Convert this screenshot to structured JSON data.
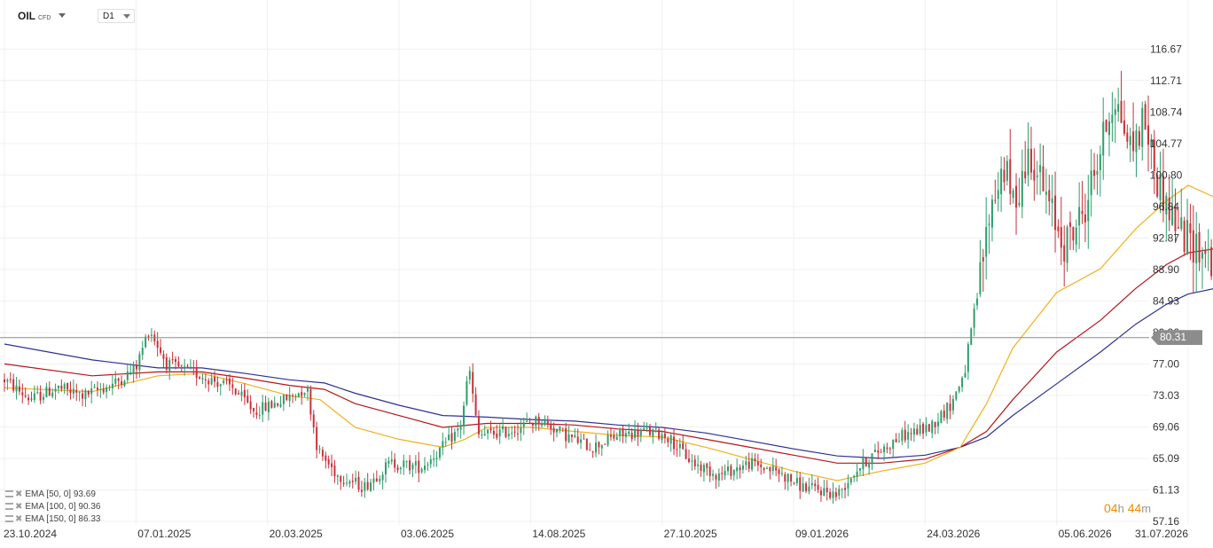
{
  "header": {
    "symbol": "OIL",
    "symbol_type": "CFD",
    "timeframe": "D1"
  },
  "indicators": [
    {
      "label": "EMA [50, 0] 93.69",
      "color": "#f2b01e"
    },
    {
      "label": "EMA [100, 0] 90.36",
      "color": "#b5161b"
    },
    {
      "label": "EMA [150, 0] 86.33",
      "color": "#2e3192"
    }
  ],
  "current_price": "80.31",
  "countdown": {
    "hours": "04",
    "hours_unit": "h",
    "minutes": "44",
    "minutes_unit": "m"
  },
  "colors": {
    "up": "#2e9e6a",
    "down": "#c8323a",
    "grid": "#f0f0f0",
    "price_line": "#8c8c8c"
  },
  "chart_data": {
    "type": "candlestick",
    "y_ticks": [
      "116.67",
      "112.71",
      "108.74",
      "104.77",
      "100.80",
      "96.84",
      "92.87",
      "88.90",
      "84.93",
      "80.96",
      "77.00",
      "73.03",
      "69.06",
      "65.09",
      "61.13",
      "57.16"
    ],
    "x_ticks": [
      "23.10.2024",
      "07.01.2025",
      "20.03.2025",
      "03.06.2025",
      "14.08.2025",
      "27.10.2025",
      "09.01.2026",
      "24.03.2026",
      "05.06.2026",
      "31.07.2026"
    ],
    "ylim": [
      57.16,
      119.5
    ],
    "price_path": [
      {
        "t": 0.0,
        "p": 75.0
      },
      {
        "t": 0.6,
        "p": 72.5
      },
      {
        "t": 1.2,
        "p": 74.0
      },
      {
        "t": 1.8,
        "p": 73.0
      },
      {
        "t": 2.5,
        "p": 74.5
      },
      {
        "t": 3.0,
        "p": 76.5
      },
      {
        "t": 3.3,
        "p": 81.5
      },
      {
        "t": 3.7,
        "p": 77.0
      },
      {
        "t": 4.5,
        "p": 75.5
      },
      {
        "t": 5.2,
        "p": 74.0
      },
      {
        "t": 5.7,
        "p": 71.0
      },
      {
        "t": 6.4,
        "p": 72.5
      },
      {
        "t": 6.9,
        "p": 74.0
      },
      {
        "t": 7.15,
        "p": 66.0
      },
      {
        "t": 7.6,
        "p": 63.0
      },
      {
        "t": 8.2,
        "p": 61.5
      },
      {
        "t": 8.8,
        "p": 64.5
      },
      {
        "t": 9.5,
        "p": 64.0
      },
      {
        "t": 10.0,
        "p": 66.5
      },
      {
        "t": 10.4,
        "p": 69.0
      },
      {
        "t": 10.6,
        "p": 76.5
      },
      {
        "t": 10.8,
        "p": 68.0
      },
      {
        "t": 11.5,
        "p": 68.5
      },
      {
        "t": 12.2,
        "p": 70.0
      },
      {
        "t": 12.8,
        "p": 68.0
      },
      {
        "t": 13.4,
        "p": 66.5
      },
      {
        "t": 14.0,
        "p": 68.0
      },
      {
        "t": 14.6,
        "p": 68.5
      },
      {
        "t": 15.1,
        "p": 68.0
      },
      {
        "t": 15.7,
        "p": 64.5
      },
      {
        "t": 16.3,
        "p": 63.0
      },
      {
        "t": 17.0,
        "p": 64.5
      },
      {
        "t": 17.6,
        "p": 63.5
      },
      {
        "t": 18.2,
        "p": 61.5
      },
      {
        "t": 18.7,
        "p": 61.0
      },
      {
        "t": 19.0,
        "p": 60.5
      },
      {
        "t": 19.4,
        "p": 63.5
      },
      {
        "t": 19.8,
        "p": 65.5
      },
      {
        "t": 20.5,
        "p": 68.0
      },
      {
        "t": 21.1,
        "p": 69.0
      },
      {
        "t": 21.6,
        "p": 72.0
      },
      {
        "t": 21.9,
        "p": 76.0
      },
      {
        "t": 22.2,
        "p": 86.0
      },
      {
        "t": 22.5,
        "p": 97.0
      },
      {
        "t": 22.8,
        "p": 102.0
      },
      {
        "t": 23.0,
        "p": 97.0
      },
      {
        "t": 23.4,
        "p": 104.0
      },
      {
        "t": 23.8,
        "p": 97.0
      },
      {
        "t": 24.2,
        "p": 92.0
      },
      {
        "t": 24.6,
        "p": 96.0
      },
      {
        "t": 25.0,
        "p": 104.0
      },
      {
        "t": 25.3,
        "p": 111.0
      },
      {
        "t": 25.7,
        "p": 104.0
      },
      {
        "t": 26.0,
        "p": 108.0
      },
      {
        "t": 26.3,
        "p": 100.0
      },
      {
        "t": 26.6,
        "p": 96.0
      },
      {
        "t": 26.9,
        "p": 93.0
      },
      {
        "t": 27.2,
        "p": 92.0
      },
      {
        "t": 27.5,
        "p": 90.5
      },
      {
        "t": 27.8,
        "p": 86.0
      },
      {
        "t": 28.0,
        "p": 83.0
      },
      {
        "t": 28.2,
        "p": 79.0
      },
      {
        "t": 28.35,
        "p": 80.31
      }
    ],
    "ema50": [
      {
        "t": 0.0,
        "p": 74.0
      },
      {
        "t": 2.0,
        "p": 73.5
      },
      {
        "t": 3.5,
        "p": 75.5
      },
      {
        "t": 4.5,
        "p": 75.8
      },
      {
        "t": 5.5,
        "p": 74.5
      },
      {
        "t": 6.5,
        "p": 73.0
      },
      {
        "t": 7.2,
        "p": 72.5
      },
      {
        "t": 8.0,
        "p": 69.0
      },
      {
        "t": 9.0,
        "p": 67.5
      },
      {
        "t": 10.0,
        "p": 66.5
      },
      {
        "t": 10.5,
        "p": 67.5
      },
      {
        "t": 11.0,
        "p": 69.0
      },
      {
        "t": 12.0,
        "p": 69.0
      },
      {
        "t": 13.0,
        "p": 68.5
      },
      {
        "t": 14.0,
        "p": 68.0
      },
      {
        "t": 15.0,
        "p": 67.8
      },
      {
        "t": 16.0,
        "p": 66.5
      },
      {
        "t": 17.0,
        "p": 65.0
      },
      {
        "t": 18.0,
        "p": 63.5
      },
      {
        "t": 19.0,
        "p": 62.3
      },
      {
        "t": 20.0,
        "p": 63.5
      },
      {
        "t": 21.0,
        "p": 64.5
      },
      {
        "t": 21.8,
        "p": 66.5
      },
      {
        "t": 22.4,
        "p": 72.0
      },
      {
        "t": 23.0,
        "p": 79.0
      },
      {
        "t": 24.0,
        "p": 86.0
      },
      {
        "t": 25.0,
        "p": 89.0
      },
      {
        "t": 25.8,
        "p": 94.0
      },
      {
        "t": 26.5,
        "p": 97.5
      },
      {
        "t": 27.0,
        "p": 99.5
      },
      {
        "t": 27.6,
        "p": 98.0
      },
      {
        "t": 28.1,
        "p": 96.0
      },
      {
        "t": 28.35,
        "p": 93.69
      }
    ],
    "ema100": [
      {
        "t": 0.0,
        "p": 77.0
      },
      {
        "t": 2.0,
        "p": 75.5
      },
      {
        "t": 3.5,
        "p": 76.0
      },
      {
        "t": 4.5,
        "p": 76.0
      },
      {
        "t": 5.5,
        "p": 75.2
      },
      {
        "t": 6.5,
        "p": 74.3
      },
      {
        "t": 7.3,
        "p": 73.8
      },
      {
        "t": 8.0,
        "p": 72.0
      },
      {
        "t": 9.0,
        "p": 70.5
      },
      {
        "t": 10.0,
        "p": 69.0
      },
      {
        "t": 11.0,
        "p": 69.5
      },
      {
        "t": 12.0,
        "p": 69.5
      },
      {
        "t": 13.0,
        "p": 69.3
      },
      {
        "t": 14.0,
        "p": 68.8
      },
      {
        "t": 15.0,
        "p": 68.5
      },
      {
        "t": 16.0,
        "p": 67.5
      },
      {
        "t": 17.0,
        "p": 66.5
      },
      {
        "t": 18.0,
        "p": 65.5
      },
      {
        "t": 19.0,
        "p": 64.5
      },
      {
        "t": 20.0,
        "p": 64.5
      },
      {
        "t": 21.0,
        "p": 65.0
      },
      {
        "t": 21.8,
        "p": 66.5
      },
      {
        "t": 22.4,
        "p": 68.5
      },
      {
        "t": 23.0,
        "p": 72.5
      },
      {
        "t": 24.0,
        "p": 78.5
      },
      {
        "t": 25.0,
        "p": 82.5
      },
      {
        "t": 25.8,
        "p": 86.5
      },
      {
        "t": 26.5,
        "p": 89.5
      },
      {
        "t": 27.0,
        "p": 91.0
      },
      {
        "t": 27.6,
        "p": 91.5
      },
      {
        "t": 28.1,
        "p": 91.0
      },
      {
        "t": 28.35,
        "p": 90.36
      }
    ],
    "ema150": [
      {
        "t": 0.0,
        "p": 79.5
      },
      {
        "t": 2.0,
        "p": 77.5
      },
      {
        "t": 3.5,
        "p": 76.5
      },
      {
        "t": 4.5,
        "p": 76.5
      },
      {
        "t": 5.5,
        "p": 75.8
      },
      {
        "t": 6.5,
        "p": 75.0
      },
      {
        "t": 7.3,
        "p": 74.6
      },
      {
        "t": 8.0,
        "p": 73.3
      },
      {
        "t": 9.0,
        "p": 71.8
      },
      {
        "t": 10.0,
        "p": 70.5
      },
      {
        "t": 11.0,
        "p": 70.3
      },
      {
        "t": 12.0,
        "p": 70.0
      },
      {
        "t": 13.0,
        "p": 69.8
      },
      {
        "t": 14.0,
        "p": 69.3
      },
      {
        "t": 15.0,
        "p": 69.0
      },
      {
        "t": 16.0,
        "p": 68.3
      },
      {
        "t": 17.0,
        "p": 67.3
      },
      {
        "t": 18.0,
        "p": 66.3
      },
      {
        "t": 19.0,
        "p": 65.4
      },
      {
        "t": 20.0,
        "p": 65.1
      },
      {
        "t": 21.0,
        "p": 65.5
      },
      {
        "t": 21.8,
        "p": 66.5
      },
      {
        "t": 22.4,
        "p": 67.8
      },
      {
        "t": 23.0,
        "p": 70.5
      },
      {
        "t": 24.0,
        "p": 74.5
      },
      {
        "t": 25.0,
        "p": 78.5
      },
      {
        "t": 25.8,
        "p": 82.0
      },
      {
        "t": 26.5,
        "p": 84.5
      },
      {
        "t": 27.0,
        "p": 85.8
      },
      {
        "t": 27.6,
        "p": 86.5
      },
      {
        "t": 28.1,
        "p": 86.8
      },
      {
        "t": 28.35,
        "p": 86.33
      }
    ]
  }
}
